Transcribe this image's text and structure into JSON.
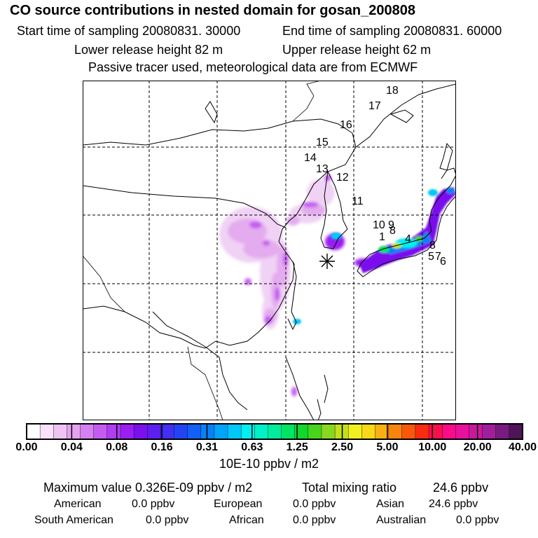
{
  "header": {
    "title": "CO  source contributions in nested domain for gosan_200808",
    "start_time": "Start time of sampling 20080831. 30000",
    "end_time": "End time of sampling 20080831. 60000",
    "lower_height": "Lower release height   82 m",
    "upper_height": "Upper release height   62 m",
    "tracer_note": "Passive tracer used, meteorological data are from ECMWF"
  },
  "map": {
    "trajectory_labels": [
      "18",
      "17",
      "16",
      "15",
      "14",
      "13",
      "12",
      "11",
      "10",
      "9",
      "8",
      "1",
      "4",
      "8",
      "5",
      "7",
      "6"
    ],
    "receptor_marker": "star-marker"
  },
  "colorbar": {
    "ticks": [
      "0.00",
      "0.04",
      "0.08",
      "0.16",
      "0.31",
      "0.63",
      "1.25",
      "2.50",
      "5.00",
      "10.00",
      "20.00",
      "40.00"
    ],
    "unit_label": "10E-10 ppbv / m2",
    "colors": [
      "#ffffff",
      "#f9e1f9",
      "#efc3f2",
      "#e3a2ee",
      "#d580ef",
      "#c55cf1",
      "#b13cf2",
      "#9a1ff2",
      "#7a10ee",
      "#5c1ff0",
      "#4030f2",
      "#2244f4",
      "#1260f6",
      "#0880f8",
      "#00a4f8",
      "#00c8f8",
      "#00f0f0",
      "#00f0c8",
      "#00ec9c",
      "#00e466",
      "#10d82c",
      "#48d41c",
      "#88d820",
      "#c0e020",
      "#f0f020",
      "#f8d818",
      "#f8b014",
      "#f88410",
      "#f8580c",
      "#f82c10",
      "#f8104c",
      "#f80c88",
      "#e8109c",
      "#c8189c",
      "#a0209c",
      "#781c80",
      "#501458"
    ]
  },
  "summary": {
    "max_label": "Maximum value  0.326E-09 ppbv / m2",
    "total_label": "Total mixing ratio",
    "total_value": "24.6 ppbv",
    "regions": [
      {
        "name": "American",
        "value": "0.0 ppbv"
      },
      {
        "name": "European",
        "value": "0.0 ppbv"
      },
      {
        "name": "Asian",
        "value": "24.6 ppbv"
      },
      {
        "name": "South American",
        "value": "0.0 ppbv"
      },
      {
        "name": "African",
        "value": "0.0 ppbv"
      },
      {
        "name": "Australian",
        "value": "0.0 ppbv"
      }
    ]
  }
}
